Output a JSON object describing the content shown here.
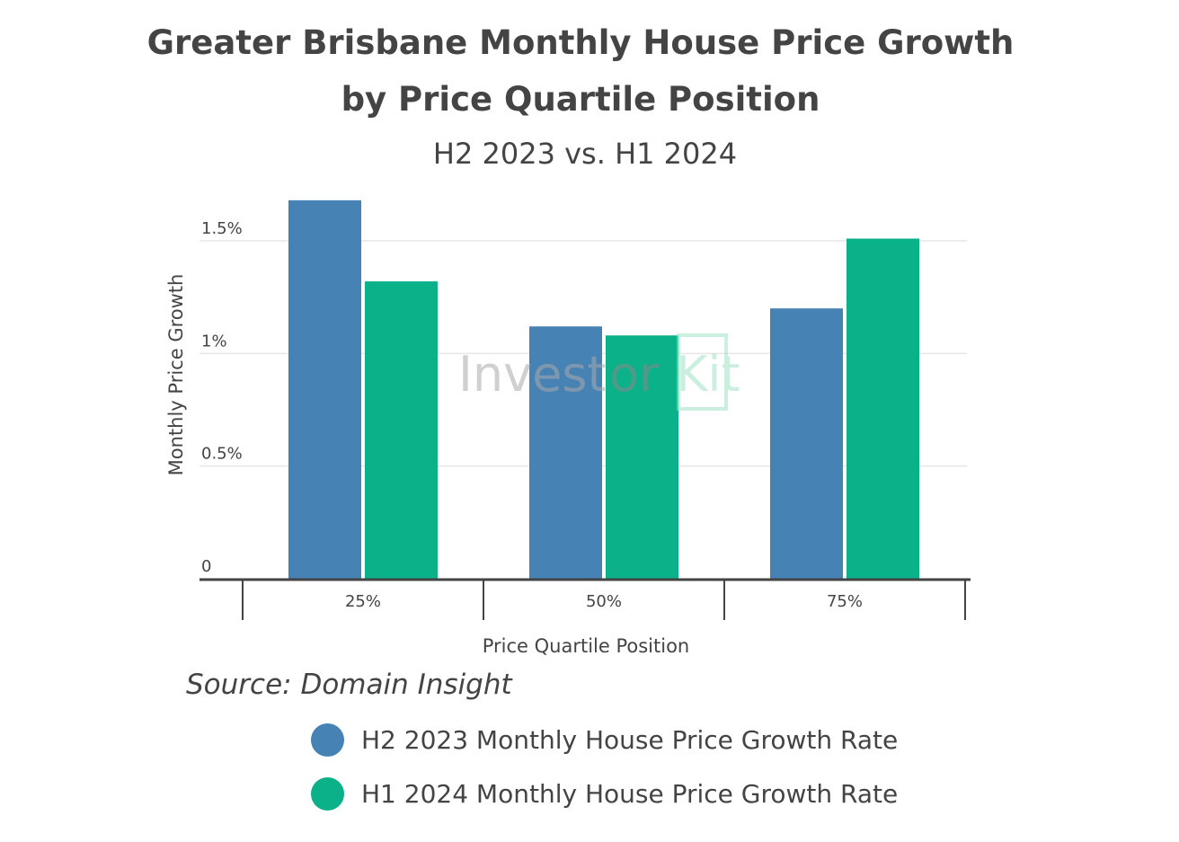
{
  "chart_data": {
    "type": "bar",
    "title_line1": "Greater Brisbane Monthly House Price Growth",
    "title_line2": "by Price Quartile Position",
    "subtitle": "H2 2023 vs. H1 2024",
    "xlabel": "Price Quartile Position",
    "ylabel": "Monthly Price Growth",
    "categories": [
      "25%",
      "50%",
      "75%"
    ],
    "ylim": [
      0,
      1.5
    ],
    "yticks": [
      0,
      0.5,
      1,
      1.5
    ],
    "ytick_labels": [
      "0",
      "0.5%",
      "1%",
      "1.5%"
    ],
    "grid": true,
    "legend_position": "bottom",
    "series": [
      {
        "name": "H2 2023 Monthly House Price Growth Rate",
        "color": "#4682b4",
        "values": [
          1.68,
          1.12,
          1.2
        ]
      },
      {
        "name": "H1 2024 Monthly House Price Growth Rate",
        "color": "#0bb189",
        "values": [
          1.32,
          1.08,
          1.51
        ]
      }
    ],
    "source": "Source: Domain Insight",
    "watermark": "InvestorKit"
  }
}
